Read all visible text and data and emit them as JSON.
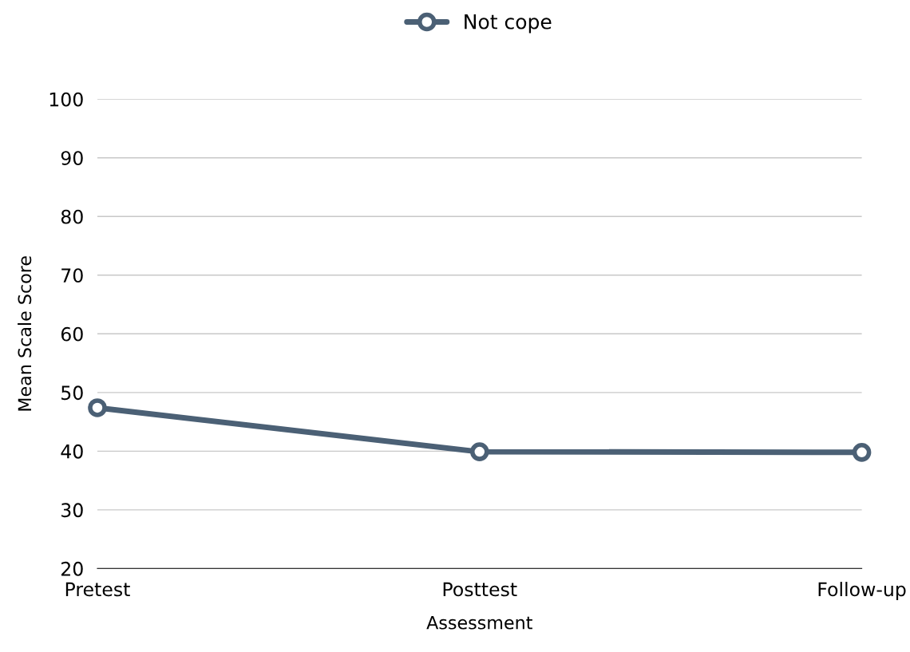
{
  "chart_data": {
    "type": "line",
    "xlabel": "Assessment",
    "ylabel": "Mean Scale Score",
    "categories": [
      "Pretest",
      "Posttest",
      "Follow-up"
    ],
    "series": [
      {
        "name": "Not cope",
        "color": "#4b6075",
        "values": [
          47.4,
          39.9,
          39.8
        ]
      }
    ],
    "ylim": [
      20,
      100
    ],
    "yticks": [
      20,
      30,
      40,
      50,
      60,
      70,
      80,
      90,
      100
    ],
    "grid": "y",
    "legend": "top",
    "marker": "circle",
    "line_style": "solid"
  }
}
